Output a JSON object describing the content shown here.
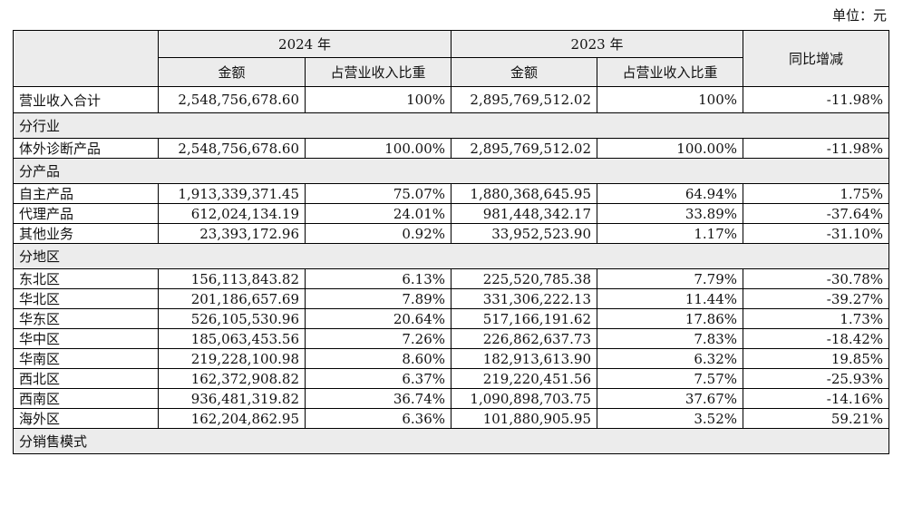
{
  "unit_label": "单位：元",
  "header": {
    "year1": "2024 年",
    "year2": "2023 年",
    "amount": "金额",
    "ratio": "占营业收入比重",
    "yoy": "同比增减"
  },
  "total": {
    "label": "营业收入合计",
    "a24": "2,548,756,678.60",
    "r24": "100%",
    "a23": "2,895,769,512.02",
    "r23": "100%",
    "yoy": "-11.98%"
  },
  "sections": {
    "industry": "分行业",
    "product": "分产品",
    "region": "分地区",
    "sales_model": "分销售模式"
  },
  "industry_rows": [
    {
      "label": "体外诊断产品",
      "a24": "2,548,756,678.60",
      "r24": "100.00%",
      "a23": "2,895,769,512.02",
      "r23": "100.00%",
      "yoy": "-11.98%"
    }
  ],
  "product_rows": [
    {
      "label": "自主产品",
      "a24": "1,913,339,371.45",
      "r24": "75.07%",
      "a23": "1,880,368,645.95",
      "r23": "64.94%",
      "yoy": "1.75%"
    },
    {
      "label": "代理产品",
      "a24": "612,024,134.19",
      "r24": "24.01%",
      "a23": "981,448,342.17",
      "r23": "33.89%",
      "yoy": "-37.64%"
    },
    {
      "label": "其他业务",
      "a24": "23,393,172.96",
      "r24": "0.92%",
      "a23": "33,952,523.90",
      "r23": "1.17%",
      "yoy": "-31.10%"
    }
  ],
  "region_rows": [
    {
      "label": "东北区",
      "a24": "156,113,843.82",
      "r24": "6.13%",
      "a23": "225,520,785.38",
      "r23": "7.79%",
      "yoy": "-30.78%"
    },
    {
      "label": "华北区",
      "a24": "201,186,657.69",
      "r24": "7.89%",
      "a23": "331,306,222.13",
      "r23": "11.44%",
      "yoy": "-39.27%"
    },
    {
      "label": "华东区",
      "a24": "526,105,530.96",
      "r24": "20.64%",
      "a23": "517,166,191.62",
      "r23": "17.86%",
      "yoy": "1.73%"
    },
    {
      "label": "华中区",
      "a24": "185,063,453.56",
      "r24": "7.26%",
      "a23": "226,862,637.73",
      "r23": "7.83%",
      "yoy": "-18.42%"
    },
    {
      "label": "华南区",
      "a24": "219,228,100.98",
      "r24": "8.60%",
      "a23": "182,913,613.90",
      "r23": "6.32%",
      "yoy": "19.85%"
    },
    {
      "label": "西北区",
      "a24": "162,372,908.82",
      "r24": "6.37%",
      "a23": "219,220,451.56",
      "r23": "7.57%",
      "yoy": "-25.93%"
    },
    {
      "label": "西南区",
      "a24": "936,481,319.82",
      "r24": "36.74%",
      "a23": "1,090,898,703.75",
      "r23": "37.67%",
      "yoy": "-14.16%"
    },
    {
      "label": "海外区",
      "a24": "162,204,862.95",
      "r24": "6.36%",
      "a23": "101,880,905.95",
      "r23": "3.52%",
      "yoy": "59.21%"
    }
  ]
}
